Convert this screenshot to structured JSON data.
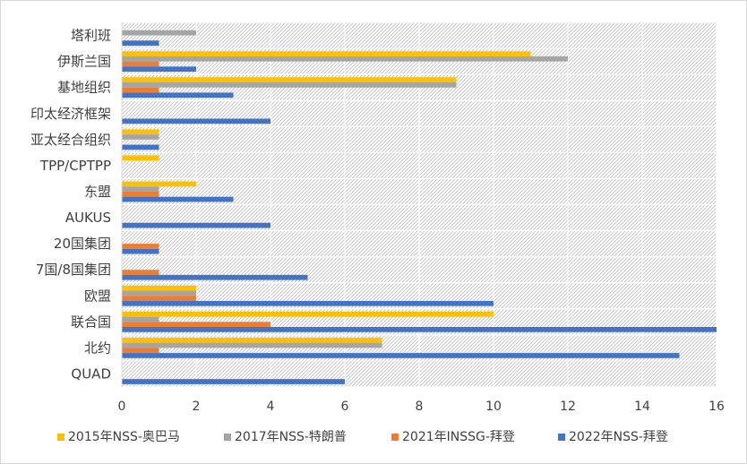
{
  "chart_data": {
    "type": "bar",
    "orientation": "horizontal",
    "title": "",
    "xlabel": "",
    "ylabel": "",
    "xlim": [
      0,
      16
    ],
    "xticks": [
      0,
      2,
      4,
      6,
      8,
      10,
      12,
      14,
      16
    ],
    "grid": true,
    "legend_position": "bottom",
    "categories": [
      "塔利班",
      "伊斯兰国",
      "基地组织",
      "印太经济框架",
      "亚太经合组织",
      "TPP/CPTPP",
      "东盟",
      "AUKUS",
      "20国集团",
      "7国/8国集团",
      "欧盟",
      "联合国",
      "北约",
      "QUAD"
    ],
    "series": [
      {
        "name": "2015年NSS-奥巴马",
        "color": "#FFC000",
        "values": [
          0,
          11,
          9,
          0,
          1,
          1,
          2,
          0,
          0,
          0,
          2,
          10,
          7,
          0
        ]
      },
      {
        "name": "2017年NSS-特朗普",
        "color": "#A5A5A5",
        "values": [
          2,
          12,
          9,
          0,
          1,
          0,
          1,
          0,
          0,
          0,
          2,
          1,
          7,
          0
        ]
      },
      {
        "name": "2021年INSSG-拜登",
        "color": "#ED7D31",
        "values": [
          0,
          1,
          1,
          0,
          0,
          0,
          1,
          0,
          1,
          1,
          2,
          4,
          1,
          0
        ]
      },
      {
        "name": "2022年NSS-拜登",
        "color": "#4472C4",
        "values": [
          1,
          2,
          3,
          4,
          1,
          0,
          3,
          4,
          1,
          5,
          10,
          16,
          15,
          6
        ]
      }
    ]
  }
}
